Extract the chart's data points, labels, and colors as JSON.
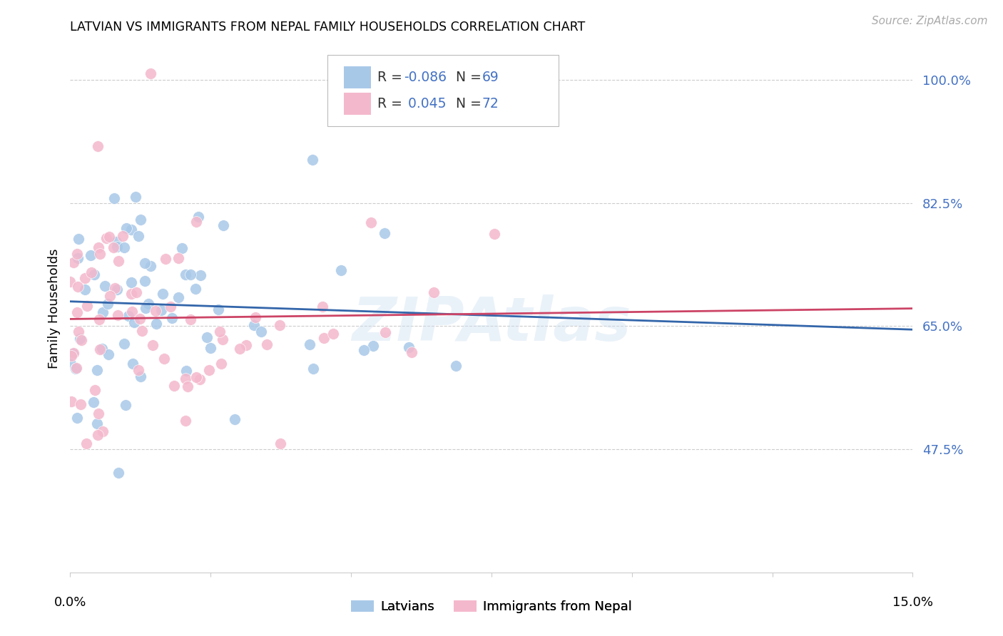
{
  "title": "LATVIAN VS IMMIGRANTS FROM NEPAL FAMILY HOUSEHOLDS CORRELATION CHART",
  "source": "Source: ZipAtlas.com",
  "ylabel": "Family Households",
  "ytick_labels": [
    "100.0%",
    "82.5%",
    "65.0%",
    "47.5%"
  ],
  "ytick_values": [
    1.0,
    0.825,
    0.65,
    0.475
  ],
  "xmin": 0.0,
  "xmax": 0.15,
  "ymin": 0.3,
  "ymax": 1.05,
  "blue_color": "#a8c8e8",
  "pink_color": "#f4b8cc",
  "blue_line_color": "#3366aa",
  "pink_line_color": "#cc4466",
  "legend_R_color": "#4472c4",
  "legend_N_color": "#4472c4",
  "blue_R": -0.086,
  "blue_N": 69,
  "pink_R": 0.045,
  "pink_N": 72,
  "watermark": "ZIPAtlas",
  "grid_color": "#cccccc",
  "tick_color": "#4472c4",
  "background": "#ffffff"
}
